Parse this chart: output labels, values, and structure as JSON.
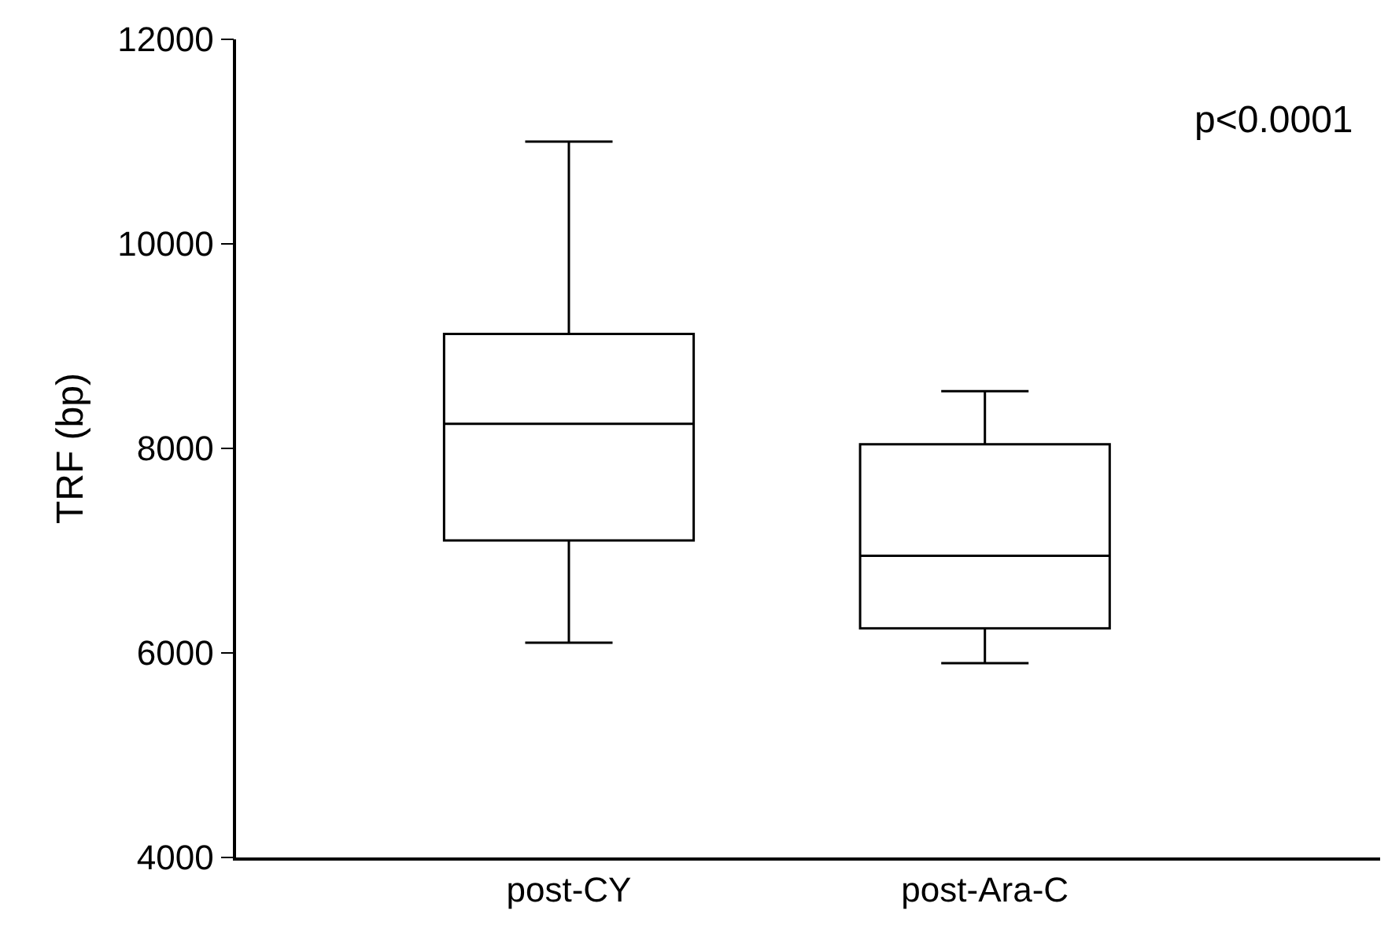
{
  "chart_data": {
    "type": "box",
    "ylabel": "TRF (bp)",
    "categories": [
      "post-CY",
      "post-Ara-C"
    ],
    "series": [
      {
        "color": "#000000",
        "boxes": [
          {
            "low": 6100,
            "q1": 7100,
            "median": 8240,
            "q3": 9120,
            "high": 11000
          },
          {
            "low": 5900,
            "q1": 6240,
            "median": 6950,
            "q3": 8040,
            "high": 8560
          }
        ]
      }
    ],
    "ylim": [
      4000,
      12000
    ],
    "yticks": [
      4000,
      6000,
      8000,
      10000,
      12000
    ],
    "annotations": [
      "p<0.0001"
    ]
  }
}
